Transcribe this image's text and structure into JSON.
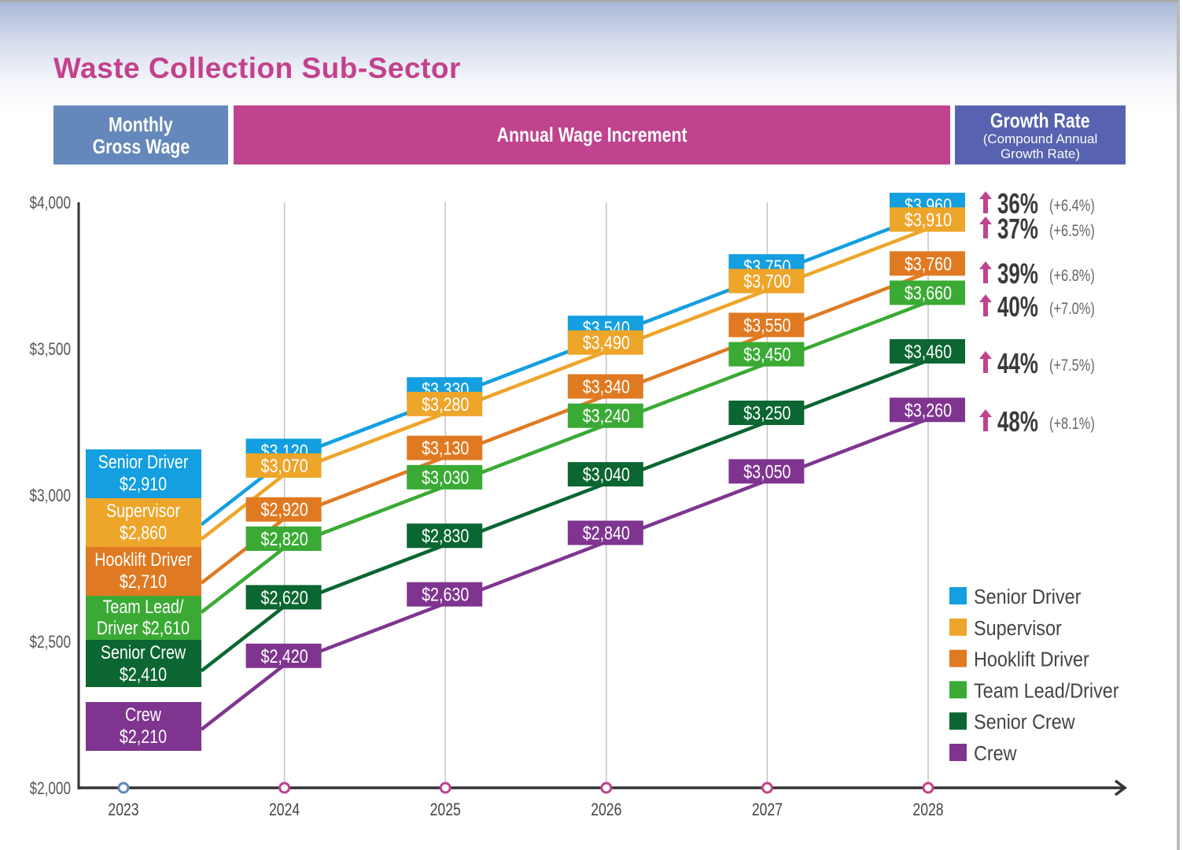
{
  "title": "Waste Collection Sub-Sector",
  "headers": {
    "monthly_line1": "Monthly",
    "monthly_line2": "Gross Wage",
    "annual": "Annual Wage Increment",
    "growth_line1": "Growth Rate",
    "growth_line2": "(Compound Annual",
    "growth_line3": "Growth Rate)"
  },
  "chart_data": {
    "type": "line",
    "title": "Waste Collection Sub-Sector",
    "xlabel": "",
    "ylabel": "",
    "x": [
      "2023",
      "2024",
      "2025",
      "2026",
      "2027",
      "2028"
    ],
    "ylim": [
      2000,
      4000
    ],
    "yticks": [
      2000,
      2500,
      3000,
      3500,
      4000
    ],
    "ytick_labels": [
      "$2,000",
      "$2,500",
      "$3,000",
      "$3,500",
      "$4,000"
    ],
    "grid": "vertical",
    "legend_position": "bottom-right",
    "series": [
      {
        "name": "Senior Driver",
        "color": "#139fe0",
        "start_label_lines": [
          "Senior Driver",
          "$2,910"
        ],
        "values": [
          2910,
          3120,
          3330,
          3540,
          3750,
          3960
        ],
        "labels": [
          "$2,910",
          "$3,120",
          "$3,330",
          "$3,540",
          "$3,750",
          "$3,960"
        ],
        "growth": "36%",
        "cagr": "(+6.4%)"
      },
      {
        "name": "Supervisor",
        "color": "#eda52a",
        "start_label_lines": [
          "Supervisor",
          "$2,860"
        ],
        "values": [
          2860,
          3070,
          3280,
          3490,
          3700,
          3910
        ],
        "labels": [
          "$2,860",
          "$3,070",
          "$3,280",
          "$3,490",
          "$3,700",
          "$3,910"
        ],
        "growth": "37%",
        "cagr": "(+6.5%)"
      },
      {
        "name": "Hooklift Driver",
        "color": "#e07a22",
        "start_label_lines": [
          "Hooklift Driver",
          "$2,710"
        ],
        "values": [
          2710,
          2920,
          3130,
          3340,
          3550,
          3760
        ],
        "labels": [
          "$2,710",
          "$2,920",
          "$3,130",
          "$3,340",
          "$3,550",
          "$3,760"
        ],
        "growth": "39%",
        "cagr": "(+6.8%)"
      },
      {
        "name": "Team Lead/Driver",
        "color": "#3aaa35",
        "start_label_lines": [
          "Team Lead/",
          "Driver $2,610"
        ],
        "values": [
          2610,
          2820,
          3030,
          3240,
          3450,
          3660
        ],
        "labels": [
          "$2,610",
          "$2,820",
          "$3,030",
          "$3,240",
          "$3,450",
          "$3,660"
        ],
        "growth": "40%",
        "cagr": "(+7.0%)"
      },
      {
        "name": "Senior Crew",
        "color": "#0b6631",
        "start_label_lines": [
          "Senior Crew",
          "$2,410"
        ],
        "values": [
          2410,
          2620,
          2830,
          3040,
          3250,
          3460
        ],
        "labels": [
          "$2,410",
          "$2,620",
          "$2,830",
          "$3,040",
          "$3,250",
          "$3,460"
        ],
        "growth": "44%",
        "cagr": "(+7.5%)"
      },
      {
        "name": "Crew",
        "color": "#7f3590",
        "start_label_lines": [
          "Crew",
          "$2,210"
        ],
        "values": [
          2210,
          2420,
          2630,
          2840,
          3050,
          3260
        ],
        "labels": [
          "$2,210",
          "$2,420",
          "$2,630",
          "$2,840",
          "$3,050",
          "$3,260"
        ],
        "growth": "48%",
        "cagr": "(+8.1%)"
      }
    ],
    "axis_marker_colors": {
      "base_year": "#6488bb",
      "future_year": "#c0438e"
    },
    "growth_arrow_color": "#c0438e"
  }
}
